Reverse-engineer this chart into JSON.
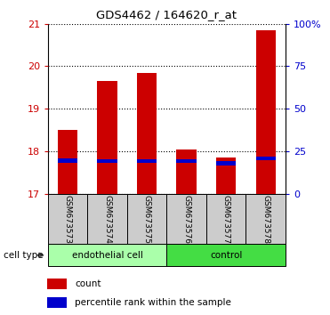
{
  "title": "GDS4462 / 164620_r_at",
  "samples": [
    "GSM673573",
    "GSM673574",
    "GSM673575",
    "GSM673576",
    "GSM673577",
    "GSM673578"
  ],
  "count_values": [
    18.5,
    19.65,
    19.85,
    18.05,
    17.85,
    20.85
  ],
  "percentile_values": [
    17.73,
    17.72,
    17.72,
    17.72,
    17.66,
    17.78
  ],
  "percentile_heights": [
    0.1,
    0.1,
    0.1,
    0.1,
    0.1,
    0.1
  ],
  "bar_bottom": 17.0,
  "ylim_min": 17.0,
  "ylim_max": 21.0,
  "yticks": [
    17,
    18,
    19,
    20,
    21
  ],
  "ytick_color": "#cc0000",
  "right_ytick_positions_pct": [
    0,
    25,
    50,
    75,
    100
  ],
  "right_ytick_labels": [
    "0",
    "25",
    "50",
    "75",
    "100%"
  ],
  "right_ytick_color": "#0000cc",
  "bar_color": "#cc0000",
  "percentile_color": "#0000cc",
  "bar_width": 0.5,
  "group1_label": "endothelial cell",
  "group2_label": "control",
  "group1_color": "#aaffaa",
  "group2_color": "#44dd44",
  "cell_type_label": "cell type",
  "legend_count_label": "count",
  "legend_pct_label": "percentile rank within the sample",
  "xlabel_bg": "#cccccc",
  "spine_color": "#444444"
}
